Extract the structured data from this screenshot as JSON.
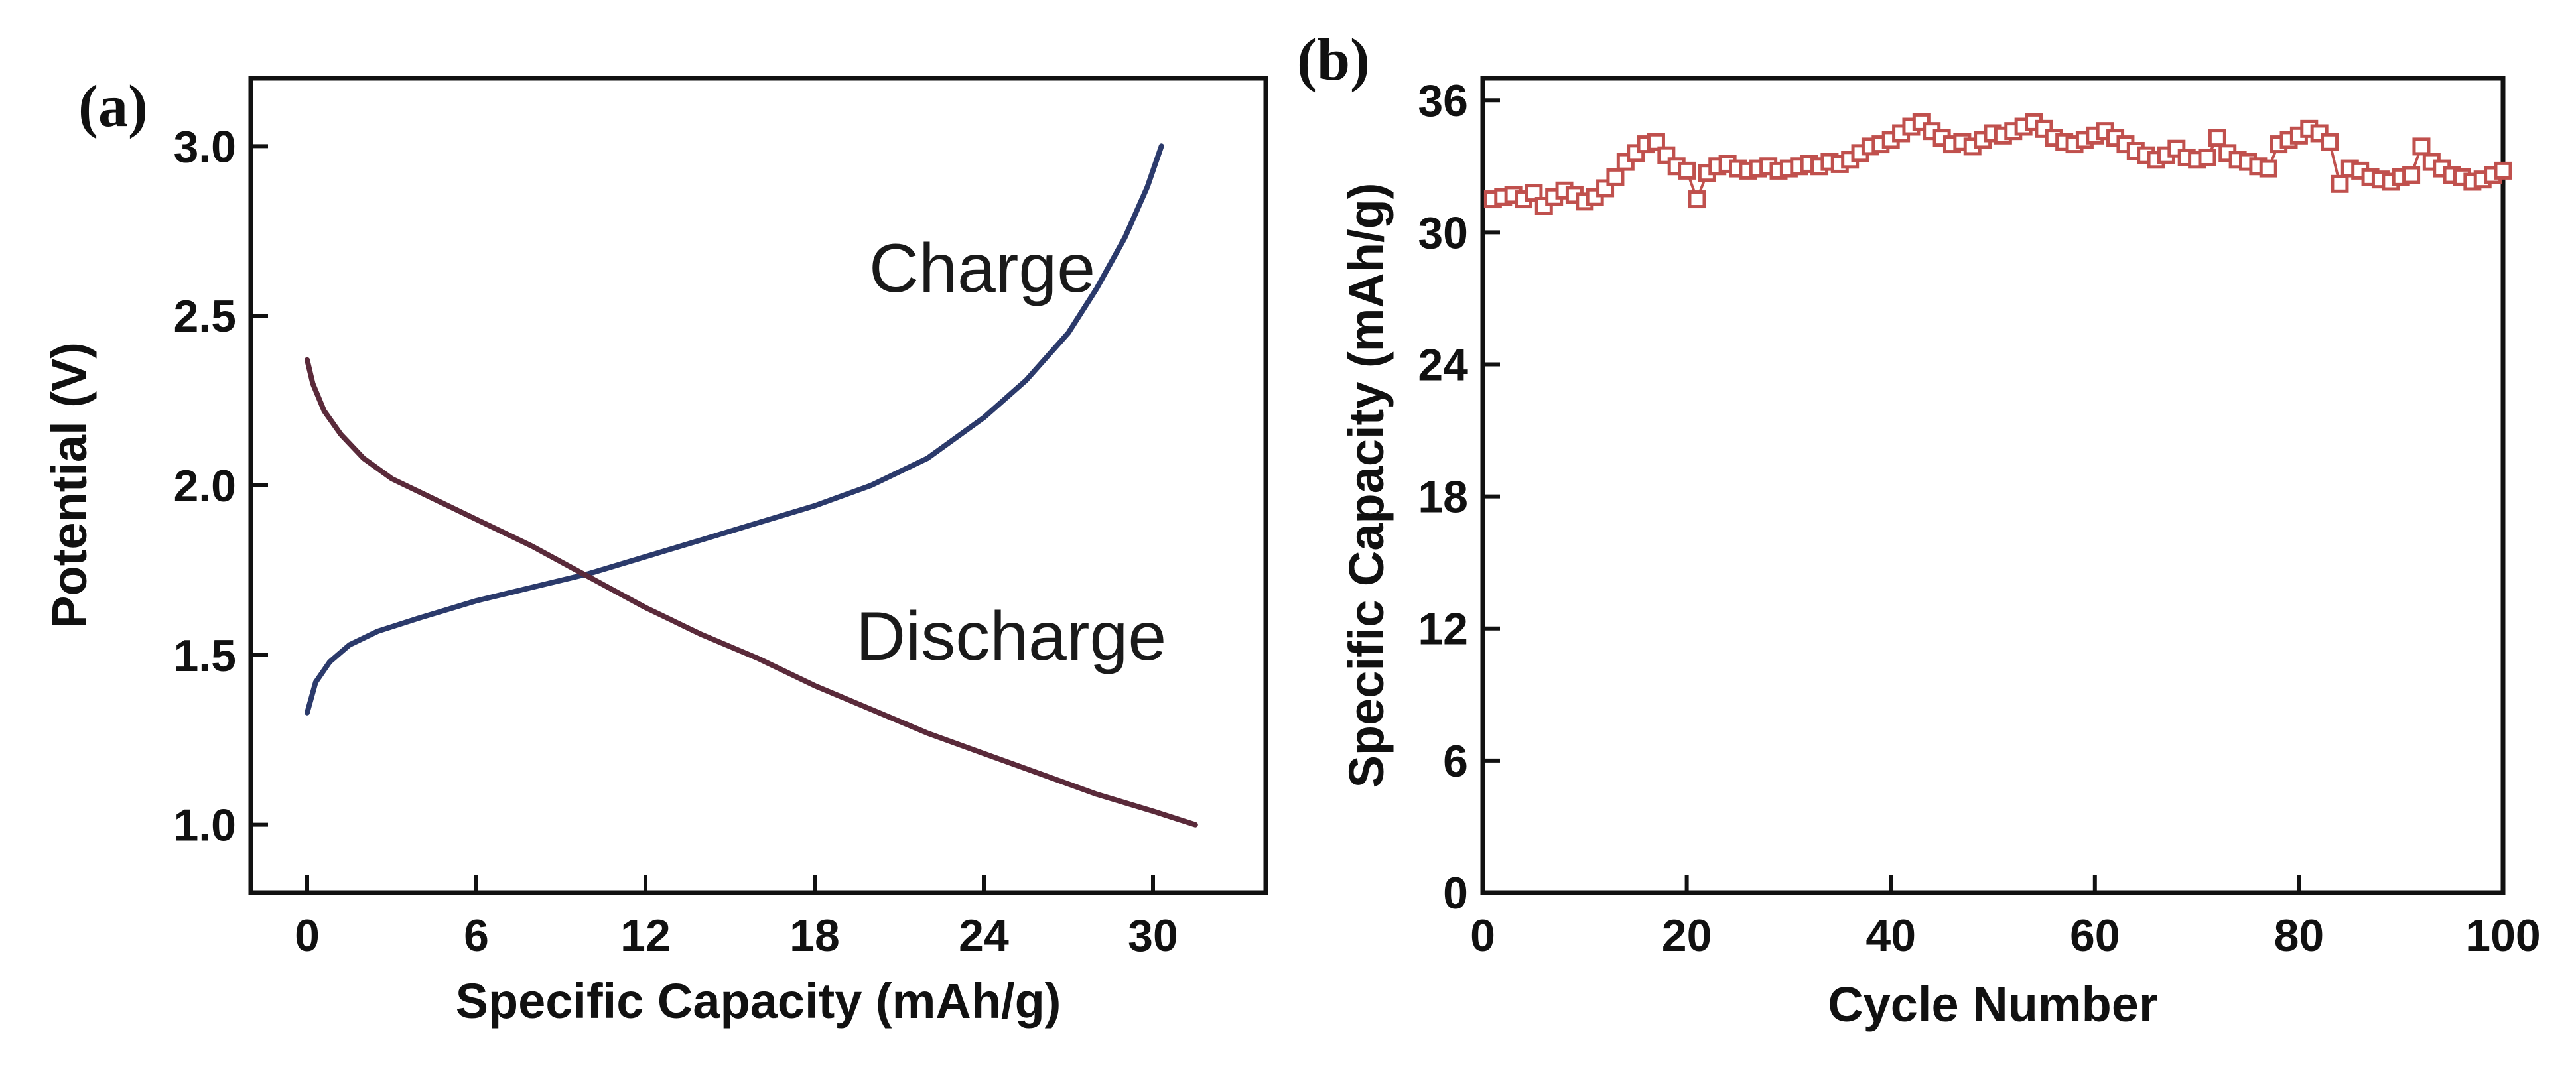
{
  "chart_data": [
    {
      "panel": "(a)",
      "type": "line",
      "title": "",
      "xlabel": "Specific Capacity (mAh/g)",
      "ylabel": "Potential (V)",
      "xlim": [
        -2,
        34
      ],
      "ylim": [
        0.8,
        3.2
      ],
      "xticks": [
        0,
        6,
        12,
        18,
        24,
        30
      ],
      "yticks": [
        1.0,
        1.5,
        2.0,
        2.5,
        3.0
      ],
      "xtick_labels": [
        "0",
        "6",
        "12",
        "18",
        "24",
        "30"
      ],
      "ytick_labels": [
        "1.0",
        "1.5",
        "2.0",
        "2.5",
        "3.0"
      ],
      "grid": false,
      "series": [
        {
          "name": "Charge",
          "color": "#2b3a6b",
          "x": [
            0,
            0.3,
            0.8,
            1.5,
            2.5,
            4,
            6,
            8,
            10,
            12,
            14,
            16,
            18,
            20,
            22,
            24,
            25.5,
            27,
            28,
            29,
            29.8,
            30.3
          ],
          "y": [
            1.33,
            1.42,
            1.48,
            1.53,
            1.57,
            1.61,
            1.66,
            1.7,
            1.74,
            1.79,
            1.84,
            1.89,
            1.94,
            2.0,
            2.08,
            2.2,
            2.31,
            2.45,
            2.58,
            2.73,
            2.88,
            3.0
          ]
        },
        {
          "name": "Discharge",
          "color": "#5a2a3a",
          "x": [
            0,
            0.2,
            0.6,
            1.2,
            2,
            3,
            4.5,
            6,
            8,
            10,
            12,
            14,
            16,
            18,
            20,
            22,
            24,
            26,
            28,
            30,
            31.5
          ],
          "y": [
            2.37,
            2.3,
            2.22,
            2.15,
            2.08,
            2.02,
            1.96,
            1.9,
            1.82,
            1.73,
            1.64,
            1.56,
            1.49,
            1.41,
            1.34,
            1.27,
            1.21,
            1.15,
            1.09,
            1.04,
            1.0
          ]
        }
      ],
      "annotations": [
        "Charge",
        "Discharge"
      ]
    },
    {
      "panel": "(b)",
      "type": "scatter",
      "title": "",
      "xlabel": "Cycle Number",
      "ylabel": "Specific Capacity (mAh/g)",
      "xlim": [
        0,
        100
      ],
      "ylim": [
        0,
        37
      ],
      "xticks": [
        0,
        20,
        40,
        60,
        80,
        100
      ],
      "yticks": [
        0,
        6,
        12,
        18,
        24,
        30,
        36
      ],
      "xtick_labels": [
        "0",
        "20",
        "40",
        "60",
        "80",
        "100"
      ],
      "ytick_labels": [
        "0",
        "6",
        "12",
        "18",
        "24",
        "30",
        "36"
      ],
      "grid": false,
      "series": [
        {
          "name": "Specific Capacity",
          "color": "#c0504d",
          "x": [
            1,
            2,
            3,
            4,
            5,
            6,
            7,
            8,
            9,
            10,
            11,
            12,
            13,
            14,
            15,
            16,
            17,
            18,
            19,
            20,
            21,
            22,
            23,
            24,
            25,
            26,
            27,
            28,
            29,
            30,
            31,
            32,
            33,
            34,
            35,
            36,
            37,
            38,
            39,
            40,
            41,
            42,
            43,
            44,
            45,
            46,
            47,
            48,
            49,
            50,
            51,
            52,
            53,
            54,
            55,
            56,
            57,
            58,
            59,
            60,
            61,
            62,
            63,
            64,
            65,
            66,
            67,
            68,
            69,
            70,
            71,
            72,
            73,
            74,
            75,
            76,
            77,
            78,
            79,
            80,
            81,
            82,
            83,
            84,
            85,
            86,
            87,
            88,
            89,
            90,
            91,
            92,
            93,
            94,
            95,
            96,
            97,
            98,
            99,
            100
          ],
          "y": [
            31.5,
            31.6,
            31.7,
            31.5,
            31.8,
            31.2,
            31.6,
            31.9,
            31.7,
            31.4,
            31.6,
            32.0,
            32.5,
            33.2,
            33.6,
            34.0,
            34.1,
            33.5,
            33.0,
            32.8,
            31.5,
            32.7,
            33.0,
            33.1,
            32.9,
            32.8,
            32.9,
            33.0,
            32.8,
            32.9,
            33.0,
            33.1,
            33.0,
            33.2,
            33.1,
            33.3,
            33.6,
            33.9,
            34.0,
            34.2,
            34.5,
            34.8,
            35.0,
            34.6,
            34.3,
            34.0,
            34.1,
            33.9,
            34.2,
            34.5,
            34.4,
            34.6,
            34.8,
            35.0,
            34.7,
            34.3,
            34.1,
            34.0,
            34.2,
            34.4,
            34.6,
            34.3,
            34.0,
            33.7,
            33.5,
            33.3,
            33.5,
            33.8,
            33.4,
            33.3,
            33.4,
            34.3,
            33.6,
            33.3,
            33.2,
            33.0,
            32.9,
            34.0,
            34.2,
            34.4,
            34.7,
            34.5,
            34.1,
            32.2,
            32.9,
            32.8,
            32.5,
            32.4,
            32.3,
            32.5,
            32.6,
            33.9,
            33.2,
            32.9,
            32.6,
            32.5,
            32.3,
            32.4,
            32.6,
            32.8
          ]
        }
      ]
    }
  ]
}
